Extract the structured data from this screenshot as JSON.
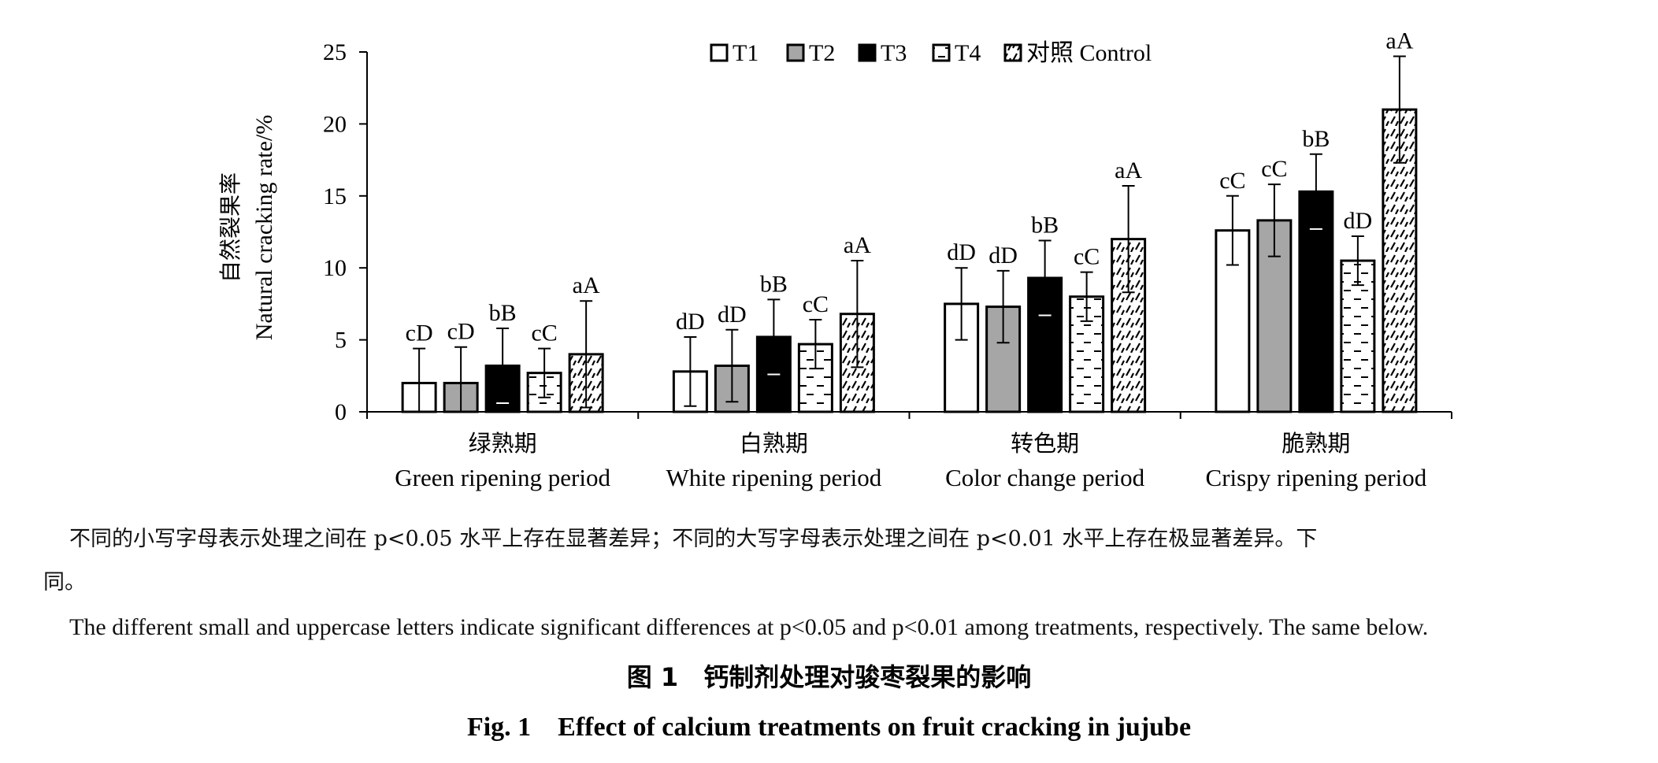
{
  "chart_data": {
    "type": "bar",
    "ylabel_zh": "自然裂果率",
    "ylabel_en": "Natural cracking rate/%",
    "ylim": [
      0,
      25
    ],
    "yticks": [
      0,
      5,
      10,
      15,
      20,
      25
    ],
    "legend_position": "top-center",
    "categories": [
      {
        "zh": "绿熟期",
        "en": "Green ripening period"
      },
      {
        "zh": "白熟期",
        "en": "White ripening period"
      },
      {
        "zh": "转色期",
        "en": "Color change period"
      },
      {
        "zh": "脆熟期",
        "en": "Crispy ripening period"
      }
    ],
    "series": [
      {
        "name": "T1",
        "pattern": "white",
        "values": [
          2.0,
          2.8,
          7.5,
          12.6
        ],
        "errors": [
          2.4,
          2.4,
          2.5,
          2.4
        ],
        "labels": [
          "cD",
          "dD",
          "dD",
          "cC"
        ]
      },
      {
        "name": "T2",
        "pattern": "gray",
        "values": [
          2.0,
          3.2,
          7.3,
          13.3
        ],
        "errors": [
          2.5,
          2.5,
          2.5,
          2.5
        ],
        "labels": [
          "cD",
          "dD",
          "dD",
          "cC"
        ]
      },
      {
        "name": "T3",
        "pattern": "black",
        "values": [
          3.2,
          5.2,
          9.3,
          15.3
        ],
        "errors": [
          2.6,
          2.6,
          2.6,
          2.6
        ],
        "labels": [
          "bB",
          "bB",
          "bB",
          "bB"
        ]
      },
      {
        "name": "T4",
        "pattern": "dashes",
        "values": [
          2.7,
          4.7,
          8.0,
          10.5
        ],
        "errors": [
          1.7,
          1.7,
          1.7,
          1.7
        ],
        "labels": [
          "cC",
          "cC",
          "cC",
          "dD"
        ]
      },
      {
        "name": "对照 Control",
        "pattern": "hatch",
        "values": [
          4.0,
          6.8,
          12.0,
          21.0
        ],
        "errors": [
          3.7,
          3.7,
          3.7,
          3.7
        ],
        "labels": [
          "aA",
          "aA",
          "aA",
          "aA"
        ]
      }
    ]
  },
  "footnote_zh_line1": "不同的小写字母表示处理之间在 p<0.05 水平上存在显著差异；不同的大写字母表示处理之间在 p<0.01 水平上存在极显著差异。下",
  "footnote_zh_line2": "同。",
  "footnote_en": "The different small and uppercase letters indicate significant differences at p<0.05 and p<0.01 among treatments, respectively. The same below.",
  "caption_zh": "图 1　钙制剂处理对骏枣裂果的影响",
  "caption_en": "Fig. 1　Effect of calcium treatments on fruit cracking in jujube"
}
